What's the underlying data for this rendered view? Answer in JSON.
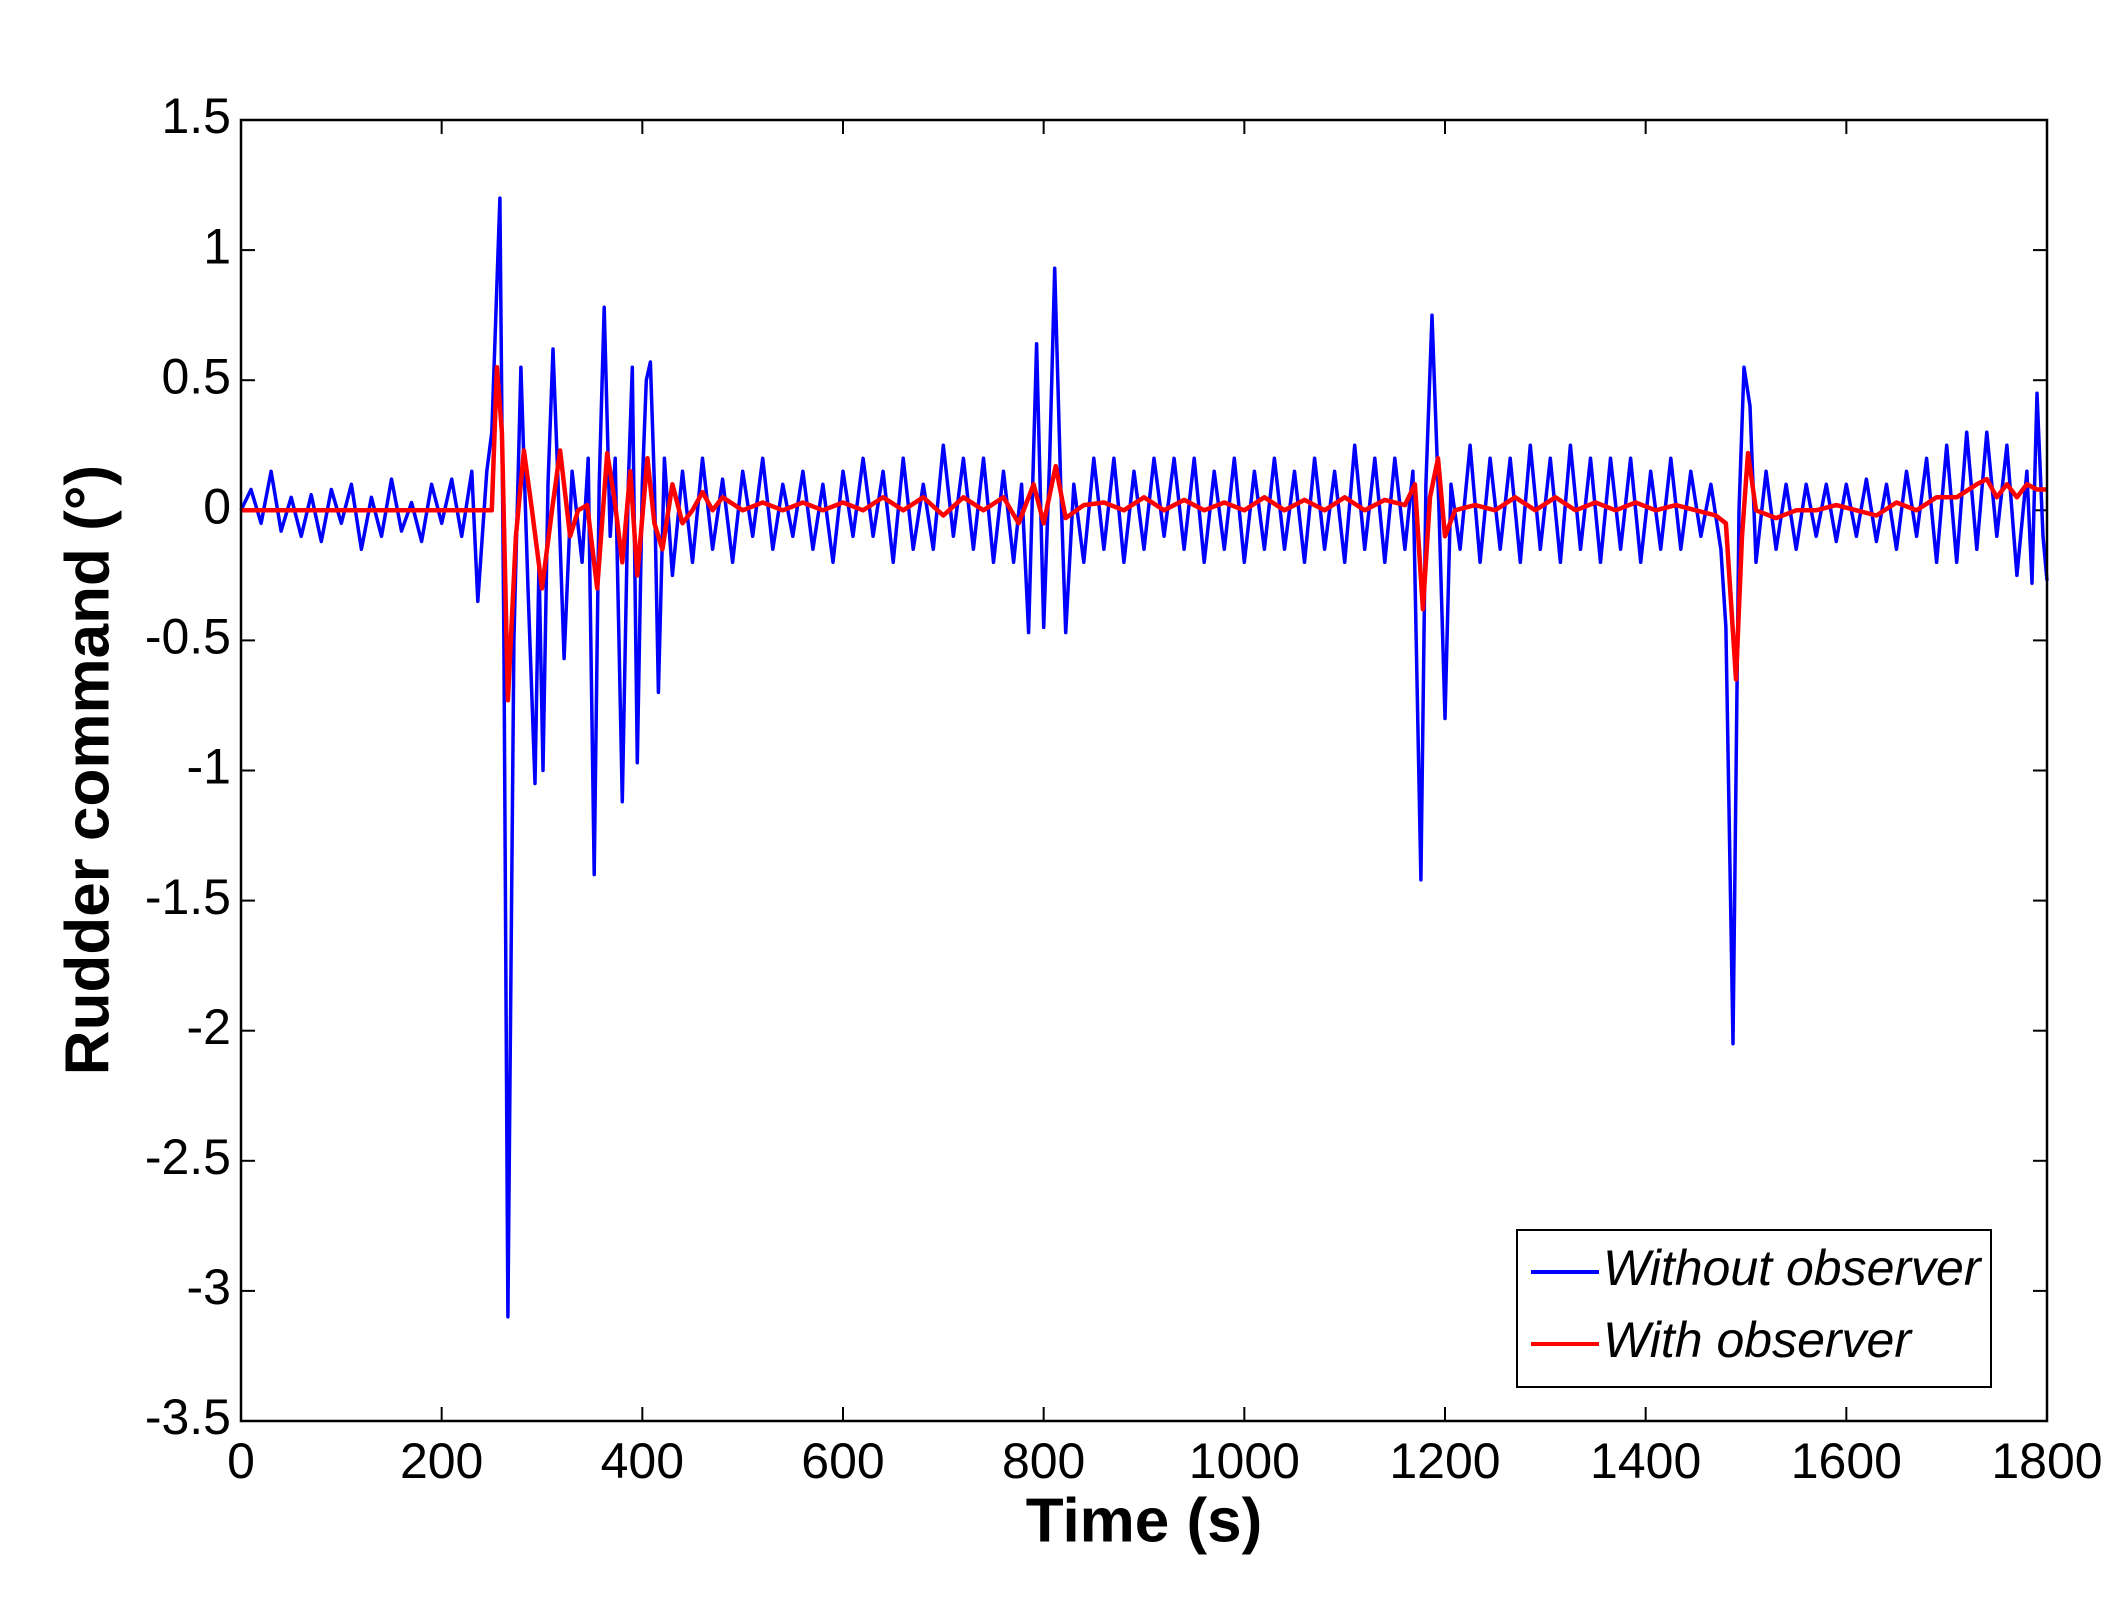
{
  "chart_data": {
    "type": "line",
    "xlabel": "Time (s)",
    "ylabel": "Rudder command (°)",
    "xlim": [
      0,
      1800
    ],
    "xticks": [
      0,
      200,
      400,
      600,
      800,
      1000,
      1200,
      1400,
      1600,
      1800
    ],
    "ylim": [
      -3.5,
      1.5
    ],
    "yticks": [
      -3.5,
      -3,
      -2.5,
      -2,
      -1.5,
      -1,
      -0.5,
      0,
      0.5,
      1,
      1.5
    ],
    "grid": false,
    "legend": "lower-right",
    "series": [
      {
        "name": "Without observer",
        "color": "#0000ff",
        "x": [
          0,
          10,
          20,
          30,
          40,
          50,
          60,
          70,
          80,
          90,
          100,
          110,
          120,
          130,
          140,
          150,
          160,
          170,
          180,
          190,
          200,
          210,
          220,
          230,
          236,
          245,
          250,
          258,
          262,
          266,
          272,
          279,
          286,
          293,
          297,
          301,
          306,
          311,
          316,
          322,
          330,
          340,
          346,
          352,
          357,
          362,
          368,
          373,
          380,
          386,
          390,
          395,
          400,
          404,
          408,
          412,
          416,
          422,
          430,
          440,
          450,
          460,
          470,
          480,
          490,
          500,
          510,
          520,
          530,
          540,
          550,
          560,
          570,
          580,
          590,
          600,
          610,
          620,
          630,
          640,
          650,
          660,
          670,
          680,
          690,
          700,
          710,
          720,
          730,
          740,
          750,
          760,
          770,
          778,
          785,
          793,
          800,
          806,
          811,
          817,
          822,
          830,
          840,
          850,
          860,
          870,
          880,
          890,
          900,
          910,
          920,
          930,
          940,
          950,
          960,
          970,
          980,
          990,
          1000,
          1010,
          1020,
          1030,
          1040,
          1050,
          1060,
          1070,
          1080,
          1090,
          1100,
          1110,
          1120,
          1130,
          1140,
          1150,
          1160,
          1168,
          1176,
          1181,
          1187,
          1194,
          1200,
          1206,
          1215,
          1225,
          1235,
          1245,
          1255,
          1265,
          1275,
          1285,
          1295,
          1305,
          1315,
          1325,
          1335,
          1345,
          1355,
          1365,
          1375,
          1385,
          1395,
          1405,
          1415,
          1425,
          1435,
          1445,
          1455,
          1465,
          1475,
          1480,
          1487,
          1493,
          1498,
          1504,
          1510,
          1520,
          1530,
          1540,
          1550,
          1560,
          1570,
          1580,
          1590,
          1600,
          1610,
          1620,
          1630,
          1640,
          1650,
          1660,
          1670,
          1680,
          1690,
          1700,
          1710,
          1720,
          1730,
          1740,
          1750,
          1760,
          1770,
          1780,
          1785,
          1790,
          1796,
          1800
        ],
        "values": [
          0,
          0.08,
          -0.05,
          0.15,
          -0.08,
          0.05,
          -0.1,
          0.06,
          -0.12,
          0.08,
          -0.05,
          0.1,
          -0.15,
          0.05,
          -0.1,
          0.12,
          -0.08,
          0.03,
          -0.12,
          0.1,
          -0.05,
          0.12,
          -0.1,
          0.15,
          -0.35,
          0.15,
          0.3,
          1.2,
          -0.5,
          -3.1,
          -0.5,
          0.55,
          -0.3,
          -1.05,
          -0.2,
          -1.0,
          0.1,
          0.62,
          0.1,
          -0.57,
          0.15,
          -0.2,
          0.2,
          -1.4,
          0.1,
          0.78,
          -0.1,
          0.2,
          -1.12,
          0.1,
          0.55,
          -0.97,
          0.1,
          0.5,
          0.57,
          0.1,
          -0.7,
          0.2,
          -0.25,
          0.15,
          -0.2,
          0.2,
          -0.15,
          0.12,
          -0.2,
          0.15,
          -0.1,
          0.2,
          -0.15,
          0.1,
          -0.1,
          0.15,
          -0.15,
          0.1,
          -0.2,
          0.15,
          -0.1,
          0.2,
          -0.1,
          0.15,
          -0.2,
          0.2,
          -0.15,
          0.1,
          -0.15,
          0.25,
          -0.1,
          0.2,
          -0.15,
          0.2,
          -0.2,
          0.15,
          -0.2,
          0.1,
          -0.47,
          0.64,
          -0.45,
          0.2,
          0.93,
          0.1,
          -0.47,
          0.1,
          -0.2,
          0.2,
          -0.15,
          0.2,
          -0.2,
          0.15,
          -0.15,
          0.2,
          -0.1,
          0.2,
          -0.15,
          0.2,
          -0.2,
          0.15,
          -0.15,
          0.2,
          -0.2,
          0.15,
          -0.15,
          0.2,
          -0.15,
          0.15,
          -0.2,
          0.2,
          -0.15,
          0.15,
          -0.2,
          0.25,
          -0.15,
          0.2,
          -0.2,
          0.2,
          -0.15,
          0.15,
          -1.42,
          0.1,
          0.75,
          0.0,
          -0.8,
          0.1,
          -0.15,
          0.25,
          -0.2,
          0.2,
          -0.15,
          0.2,
          -0.2,
          0.25,
          -0.15,
          0.2,
          -0.2,
          0.25,
          -0.15,
          0.2,
          -0.2,
          0.2,
          -0.15,
          0.2,
          -0.2,
          0.15,
          -0.15,
          0.2,
          -0.15,
          0.15,
          -0.1,
          0.1,
          -0.15,
          -0.45,
          -2.05,
          0.0,
          0.55,
          0.4,
          -0.2,
          0.15,
          -0.15,
          0.1,
          -0.15,
          0.1,
          -0.1,
          0.1,
          -0.12,
          0.1,
          -0.1,
          0.12,
          -0.12,
          0.1,
          -0.15,
          0.15,
          -0.1,
          0.2,
          -0.2,
          0.25,
          -0.2,
          0.3,
          -0.15,
          0.3,
          -0.1,
          0.25,
          -0.25,
          0.15,
          -0.28,
          0.45,
          -0.1,
          -0.27
        ]
      },
      {
        "name": "With observer",
        "color": "#ff0000",
        "x": [
          0,
          250,
          255,
          260,
          266,
          274,
          282,
          290,
          300,
          310,
          318,
          328,
          336,
          345,
          355,
          365,
          372,
          380,
          388,
          395,
          405,
          412,
          420,
          430,
          440,
          450,
          460,
          470,
          480,
          500,
          520,
          540,
          560,
          580,
          600,
          620,
          640,
          660,
          680,
          700,
          720,
          740,
          760,
          775,
          790,
          800,
          812,
          822,
          840,
          860,
          880,
          900,
          920,
          940,
          960,
          980,
          1000,
          1020,
          1040,
          1060,
          1080,
          1100,
          1120,
          1140,
          1160,
          1170,
          1178,
          1185,
          1193,
          1200,
          1210,
          1230,
          1250,
          1270,
          1290,
          1310,
          1330,
          1350,
          1370,
          1390,
          1410,
          1430,
          1450,
          1470,
          1480,
          1490,
          1496,
          1502,
          1510,
          1530,
          1550,
          1570,
          1590,
          1610,
          1630,
          1650,
          1670,
          1690,
          1710,
          1730,
          1740,
          1750,
          1760,
          1770,
          1780,
          1790,
          1800
        ],
        "values": [
          0,
          0,
          0.55,
          0.3,
          -0.73,
          -0.1,
          0.23,
          0.0,
          -0.3,
          0.0,
          0.23,
          -0.1,
          0.0,
          0.02,
          -0.3,
          0.22,
          0.05,
          -0.2,
          0.15,
          -0.25,
          0.2,
          -0.05,
          -0.15,
          0.1,
          -0.05,
          0.0,
          0.07,
          0.0,
          0.05,
          0.0,
          0.03,
          0.0,
          0.03,
          0.0,
          0.03,
          0.0,
          0.05,
          0.0,
          0.05,
          -0.02,
          0.05,
          0.0,
          0.05,
          -0.05,
          0.1,
          -0.05,
          0.17,
          -0.03,
          0.02,
          0.03,
          0.0,
          0.05,
          0.0,
          0.04,
          0.0,
          0.03,
          0.0,
          0.05,
          0.0,
          0.04,
          0.0,
          0.05,
          0.0,
          0.04,
          0.02,
          0.1,
          -0.38,
          0.05,
          0.2,
          -0.1,
          0.0,
          0.02,
          0.0,
          0.05,
          0.0,
          0.05,
          0.0,
          0.03,
          0.0,
          0.03,
          0.0,
          0.02,
          0.0,
          -0.02,
          -0.05,
          -0.65,
          -0.1,
          0.22,
          0.0,
          -0.03,
          0.0,
          0.0,
          0.02,
          0.0,
          -0.02,
          0.03,
          0.0,
          0.05,
          0.05,
          0.1,
          0.12,
          0.05,
          0.1,
          0.05,
          0.1,
          0.08,
          0.08
        ]
      }
    ]
  }
}
